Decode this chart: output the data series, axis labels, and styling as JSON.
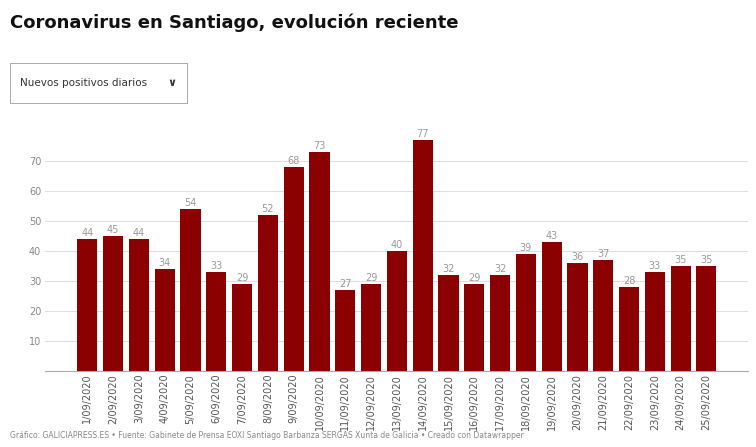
{
  "title": "Coronavirus en Santiago, evolución reciente",
  "dropdown_label": "Nuevos positivos diarios",
  "categories": [
    "1/09/2020",
    "2/09/2020",
    "3/09/2020",
    "4/09/2020",
    "5/09/2020",
    "6/09/2020",
    "7/09/2020",
    "8/09/2020",
    "9/09/2020",
    "10/09/2020",
    "11/09/2020",
    "12/09/2020",
    "13/09/2020",
    "14/09/2020",
    "15/09/2020",
    "16/09/2020",
    "17/09/2020",
    "18/09/2020",
    "19/09/2020",
    "20/09/2020",
    "21/09/2020",
    "22/09/2020",
    "23/09/2020",
    "24/09/2020",
    "25/09/2020"
  ],
  "values": [
    44,
    45,
    44,
    34,
    54,
    33,
    29,
    52,
    68,
    73,
    27,
    29,
    40,
    77,
    32,
    29,
    32,
    39,
    43,
    36,
    37,
    28,
    33,
    35,
    35
  ],
  "bar_color": "#8B0000",
  "background_color": "#ffffff",
  "ylim": [
    0,
    82
  ],
  "yticks": [
    10,
    20,
    30,
    40,
    50,
    60,
    70
  ],
  "grid_color": "#d8d8d8",
  "title_fontsize": 13,
  "label_fontsize": 7,
  "tick_fontsize": 7,
  "value_label_color": "#999999",
  "footer": "Gráfico: GALICIAPRESS.ES • Fuente: Gabinete de Prensa EOXI Santiago Barbanza SERGAS Xunta de Galicia • Creado con Datawrapper"
}
